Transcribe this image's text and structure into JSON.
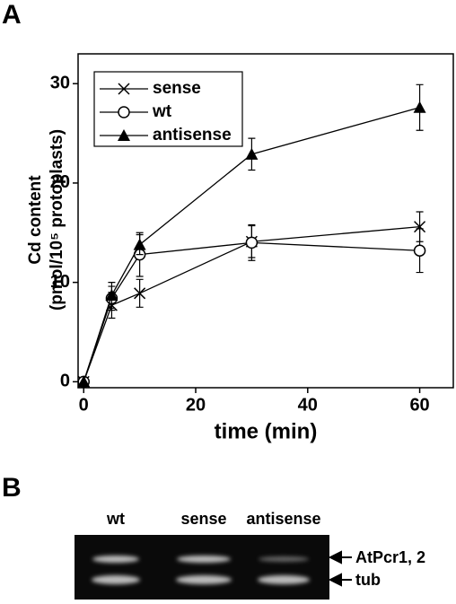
{
  "chart_data": {
    "type": "line",
    "panel_label": "A",
    "x_label": "time (min)",
    "y_label": [
      "Cd content",
      "(pmol/10⁵ protoplasts)"
    ],
    "x": [
      0,
      5,
      10,
      30,
      60
    ],
    "series": [
      {
        "name": "sense",
        "marker": "x",
        "color": "#000000",
        "values": [
          0,
          7.7,
          8.9,
          14.1,
          15.6
        ],
        "errors": [
          0,
          1.3,
          1.4,
          1.6,
          1.5
        ]
      },
      {
        "name": "wt",
        "marker": "open-circle",
        "color": "#000000",
        "values": [
          0,
          8.4,
          12.8,
          14.0,
          13.2
        ],
        "errors": [
          0,
          1.2,
          2.2,
          1.8,
          2.2
        ]
      },
      {
        "name": "antisense",
        "marker": "filled-triangle",
        "color": "#000000",
        "values": [
          0,
          8.7,
          13.8,
          22.9,
          27.6
        ],
        "errors": [
          0,
          1.3,
          1.0,
          1.6,
          2.3
        ]
      }
    ],
    "xlim": [
      -1,
      66
    ],
    "xticks": [
      0,
      20,
      40,
      60
    ],
    "ylim": [
      -0.6,
      33
    ],
    "yticks": [
      0,
      10,
      20,
      30
    ],
    "legend": "top-left",
    "grid": false
  },
  "gel": {
    "panel_label": "B",
    "lanes": [
      "wt",
      "sense",
      "antisense"
    ],
    "bands": [
      "AtPcr1, 2",
      "tub"
    ]
  }
}
